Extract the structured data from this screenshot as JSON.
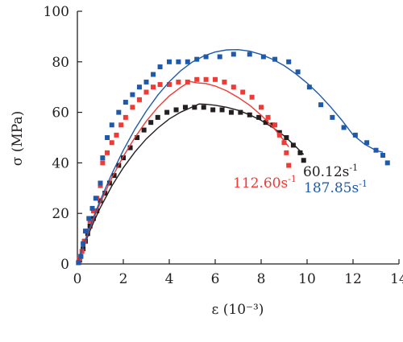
{
  "chart_data": {
    "type": "scatter",
    "title": "",
    "xlabel": "ε (10⁻³)",
    "ylabel": "σ (MPa)",
    "xlim": [
      0,
      14
    ],
    "ylim": [
      0,
      100
    ],
    "xticks": [
      "0",
      "2",
      "4",
      "6",
      "8",
      "10",
      "12",
      "14"
    ],
    "yticks": [
      "0",
      "20",
      "40",
      "60",
      "80",
      "100"
    ],
    "grid": false,
    "legend": "series labels placed near curve ends",
    "series": [
      {
        "name": "60.12s⁻¹",
        "label_base": "60.12s",
        "label_exp": "-1",
        "color": "#231f20",
        "points": [
          [
            0.05,
            0.5
          ],
          [
            0.1,
            1.5
          ],
          [
            0.15,
            3
          ],
          [
            0.25,
            6
          ],
          [
            0.35,
            9
          ],
          [
            0.45,
            12
          ],
          [
            0.55,
            15
          ],
          [
            0.7,
            18
          ],
          [
            0.85,
            21
          ],
          [
            1.0,
            25
          ],
          [
            1.2,
            28
          ],
          [
            1.4,
            32
          ],
          [
            1.6,
            35
          ],
          [
            1.8,
            39
          ],
          [
            2.0,
            42
          ],
          [
            2.3,
            46
          ],
          [
            2.6,
            50
          ],
          [
            2.9,
            53
          ],
          [
            3.2,
            56
          ],
          [
            3.5,
            58
          ],
          [
            3.9,
            60
          ],
          [
            4.3,
            61
          ],
          [
            4.7,
            62
          ],
          [
            5.1,
            62
          ],
          [
            5.5,
            62
          ],
          [
            5.9,
            61
          ],
          [
            6.3,
            61
          ],
          [
            6.7,
            60
          ],
          [
            7.1,
            60
          ],
          [
            7.5,
            59
          ],
          [
            7.9,
            58
          ],
          [
            8.2,
            56
          ],
          [
            8.5,
            55
          ],
          [
            8.8,
            52
          ],
          [
            9.1,
            50
          ],
          [
            9.4,
            47
          ],
          [
            9.7,
            44
          ],
          [
            9.85,
            41
          ]
        ],
        "fit": [
          [
            0,
            0
          ],
          [
            0.25,
            6.3
          ],
          [
            0.5,
            12.1
          ],
          [
            0.75,
            17.4
          ],
          [
            1.0,
            22.3
          ],
          [
            1.5,
            30.9
          ],
          [
            2.0,
            38.1
          ],
          [
            2.5,
            44.3
          ],
          [
            3.0,
            49.5
          ],
          [
            3.5,
            53.8
          ],
          [
            4.0,
            57.4
          ],
          [
            4.5,
            60.1
          ],
          [
            5.0,
            62.1
          ],
          [
            5.3,
            63.3
          ],
          [
            5.6,
            63.2
          ],
          [
            6.0,
            62.8
          ],
          [
            6.5,
            62.0
          ],
          [
            7.0,
            60.8
          ],
          [
            7.5,
            59.0
          ],
          [
            8.0,
            56.8
          ],
          [
            8.5,
            54.0
          ],
          [
            9.0,
            50.7
          ],
          [
            9.5,
            46.5
          ],
          [
            9.85,
            43.3
          ]
        ]
      },
      {
        "name": "112.60s⁻¹",
        "label_base": "112.60s",
        "label_exp": "-1",
        "color": "#ee3b35",
        "points": [
          [
            0.05,
            0.5
          ],
          [
            0.1,
            2
          ],
          [
            0.2,
            5
          ],
          [
            0.3,
            9
          ],
          [
            0.4,
            13
          ],
          [
            0.55,
            17
          ],
          [
            0.7,
            21
          ],
          [
            0.85,
            26
          ],
          [
            1.0,
            31
          ],
          [
            1.1,
            40
          ],
          [
            1.3,
            44
          ],
          [
            1.5,
            48
          ],
          [
            1.7,
            51
          ],
          [
            1.9,
            55
          ],
          [
            2.1,
            58
          ],
          [
            2.4,
            62
          ],
          [
            2.7,
            65
          ],
          [
            3.0,
            68
          ],
          [
            3.3,
            70
          ],
          [
            3.6,
            71
          ],
          [
            4.0,
            71
          ],
          [
            4.4,
            72
          ],
          [
            4.8,
            72
          ],
          [
            5.2,
            73
          ],
          [
            5.6,
            73
          ],
          [
            6.0,
            73
          ],
          [
            6.4,
            72
          ],
          [
            6.8,
            70
          ],
          [
            7.2,
            68
          ],
          [
            7.6,
            66
          ],
          [
            8.0,
            62
          ],
          [
            8.3,
            58
          ],
          [
            8.6,
            55
          ],
          [
            8.8,
            51
          ],
          [
            9.0,
            48
          ],
          [
            9.1,
            44
          ],
          [
            9.2,
            39
          ]
        ],
        "fit": [
          [
            0,
            0
          ],
          [
            0.25,
            6.7
          ],
          [
            0.5,
            12.9
          ],
          [
            0.75,
            18.8
          ],
          [
            1.0,
            24.2
          ],
          [
            1.5,
            34.1
          ],
          [
            2.0,
            42.6
          ],
          [
            2.5,
            50.0
          ],
          [
            3.0,
            56.5
          ],
          [
            3.5,
            62.0
          ],
          [
            4.0,
            66.5
          ],
          [
            4.5,
            69.9
          ],
          [
            4.9,
            72.2
          ],
          [
            5.2,
            71.7
          ],
          [
            5.6,
            71.4
          ],
          [
            6.0,
            70.4
          ],
          [
            6.5,
            68.5
          ],
          [
            7.0,
            65.9
          ],
          [
            7.5,
            62.8
          ],
          [
            8.0,
            58.9
          ],
          [
            8.5,
            54.3
          ],
          [
            9.0,
            48.8
          ],
          [
            9.2,
            46.3
          ]
        ]
      },
      {
        "name": "187.85s⁻¹",
        "label_base": "187.85s",
        "label_exp": "-1",
        "color": "#1f5aaa",
        "points": [
          [
            0.05,
            0.5
          ],
          [
            0.15,
            3
          ],
          [
            0.25,
            8
          ],
          [
            0.35,
            13
          ],
          [
            0.5,
            18
          ],
          [
            0.65,
            22
          ],
          [
            0.8,
            26
          ],
          [
            1.0,
            32
          ],
          [
            1.1,
            42
          ],
          [
            1.3,
            50
          ],
          [
            1.5,
            55
          ],
          [
            1.8,
            60
          ],
          [
            2.1,
            64
          ],
          [
            2.4,
            67
          ],
          [
            2.7,
            70
          ],
          [
            3.0,
            72
          ],
          [
            3.3,
            75
          ],
          [
            3.6,
            78
          ],
          [
            4.0,
            80
          ],
          [
            4.4,
            80
          ],
          [
            4.8,
            80
          ],
          [
            5.2,
            81
          ],
          [
            5.6,
            82
          ],
          [
            6.2,
            82
          ],
          [
            6.8,
            83
          ],
          [
            7.5,
            83
          ],
          [
            8.1,
            82
          ],
          [
            8.6,
            81
          ],
          [
            9.2,
            80
          ],
          [
            9.6,
            76
          ],
          [
            10.1,
            70
          ],
          [
            10.6,
            63
          ],
          [
            11.1,
            58
          ],
          [
            11.6,
            54
          ],
          [
            12.1,
            51
          ],
          [
            12.6,
            48
          ],
          [
            13.0,
            45
          ],
          [
            13.3,
            43
          ],
          [
            13.5,
            40
          ]
        ],
        "fit": [
          [
            0,
            0
          ],
          [
            0.25,
            7.0
          ],
          [
            0.5,
            13.5
          ],
          [
            0.75,
            19.6
          ],
          [
            1.0,
            25.3
          ],
          [
            1.5,
            35.7
          ],
          [
            2.0,
            45.0
          ],
          [
            2.5,
            53.3
          ],
          [
            3.0,
            60.5
          ],
          [
            3.5,
            66.8
          ],
          [
            4.0,
            72.1
          ],
          [
            4.5,
            76.5
          ],
          [
            5.0,
            79.9
          ],
          [
            5.5,
            82.3
          ],
          [
            6.0,
            83.9
          ],
          [
            6.5,
            84.7
          ],
          [
            7.0,
            84.8
          ],
          [
            7.5,
            84.2
          ],
          [
            8.0,
            82.9
          ],
          [
            8.5,
            81.0
          ],
          [
            9.0,
            78.5
          ],
          [
            9.5,
            75.3
          ],
          [
            10.0,
            71.6
          ],
          [
            10.5,
            67.3
          ],
          [
            11.0,
            62.4
          ],
          [
            11.5,
            57.0
          ],
          [
            12.0,
            51.1
          ],
          [
            12.5,
            47.4
          ],
          [
            13.0,
            44.9
          ],
          [
            13.3,
            44.2
          ]
        ]
      }
    ]
  }
}
